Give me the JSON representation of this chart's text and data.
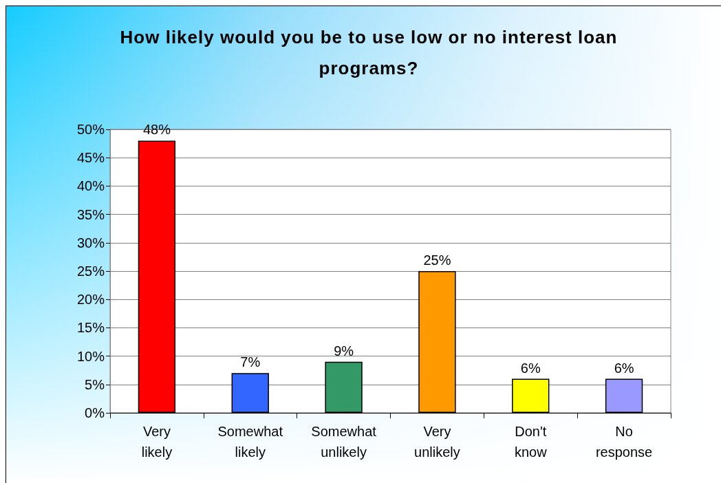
{
  "chart_data": {
    "type": "bar",
    "title": "How likely would you be to use low or no interest loan programs?",
    "categories": [
      "Very likely",
      "Somewhat likely",
      "Somewhat unlikely",
      "Very unlikely",
      "Don't know",
      "No response"
    ],
    "values": [
      48,
      7,
      9,
      25,
      6,
      6
    ],
    "colors": [
      "#ff0000",
      "#3366ff",
      "#339966",
      "#ff9900",
      "#ffff00",
      "#9999ff"
    ],
    "value_labels": [
      "48%",
      "7%",
      "9%",
      "25%",
      "6%",
      "6%"
    ],
    "ylim": [
      0,
      50
    ],
    "yticks": [
      {
        "value": 0,
        "label": "0%"
      },
      {
        "value": 5,
        "label": "5%"
      },
      {
        "value": 10,
        "label": "10%"
      },
      {
        "value": 15,
        "label": "15%"
      },
      {
        "value": 20,
        "label": "20%"
      },
      {
        "value": 25,
        "label": "25%"
      },
      {
        "value": 30,
        "label": "30%"
      },
      {
        "value": 35,
        "label": "35%"
      },
      {
        "value": 40,
        "label": "40%"
      },
      {
        "value": 45,
        "label": "45%"
      },
      {
        "value": 50,
        "label": "50%"
      }
    ],
    "grid": "y"
  }
}
